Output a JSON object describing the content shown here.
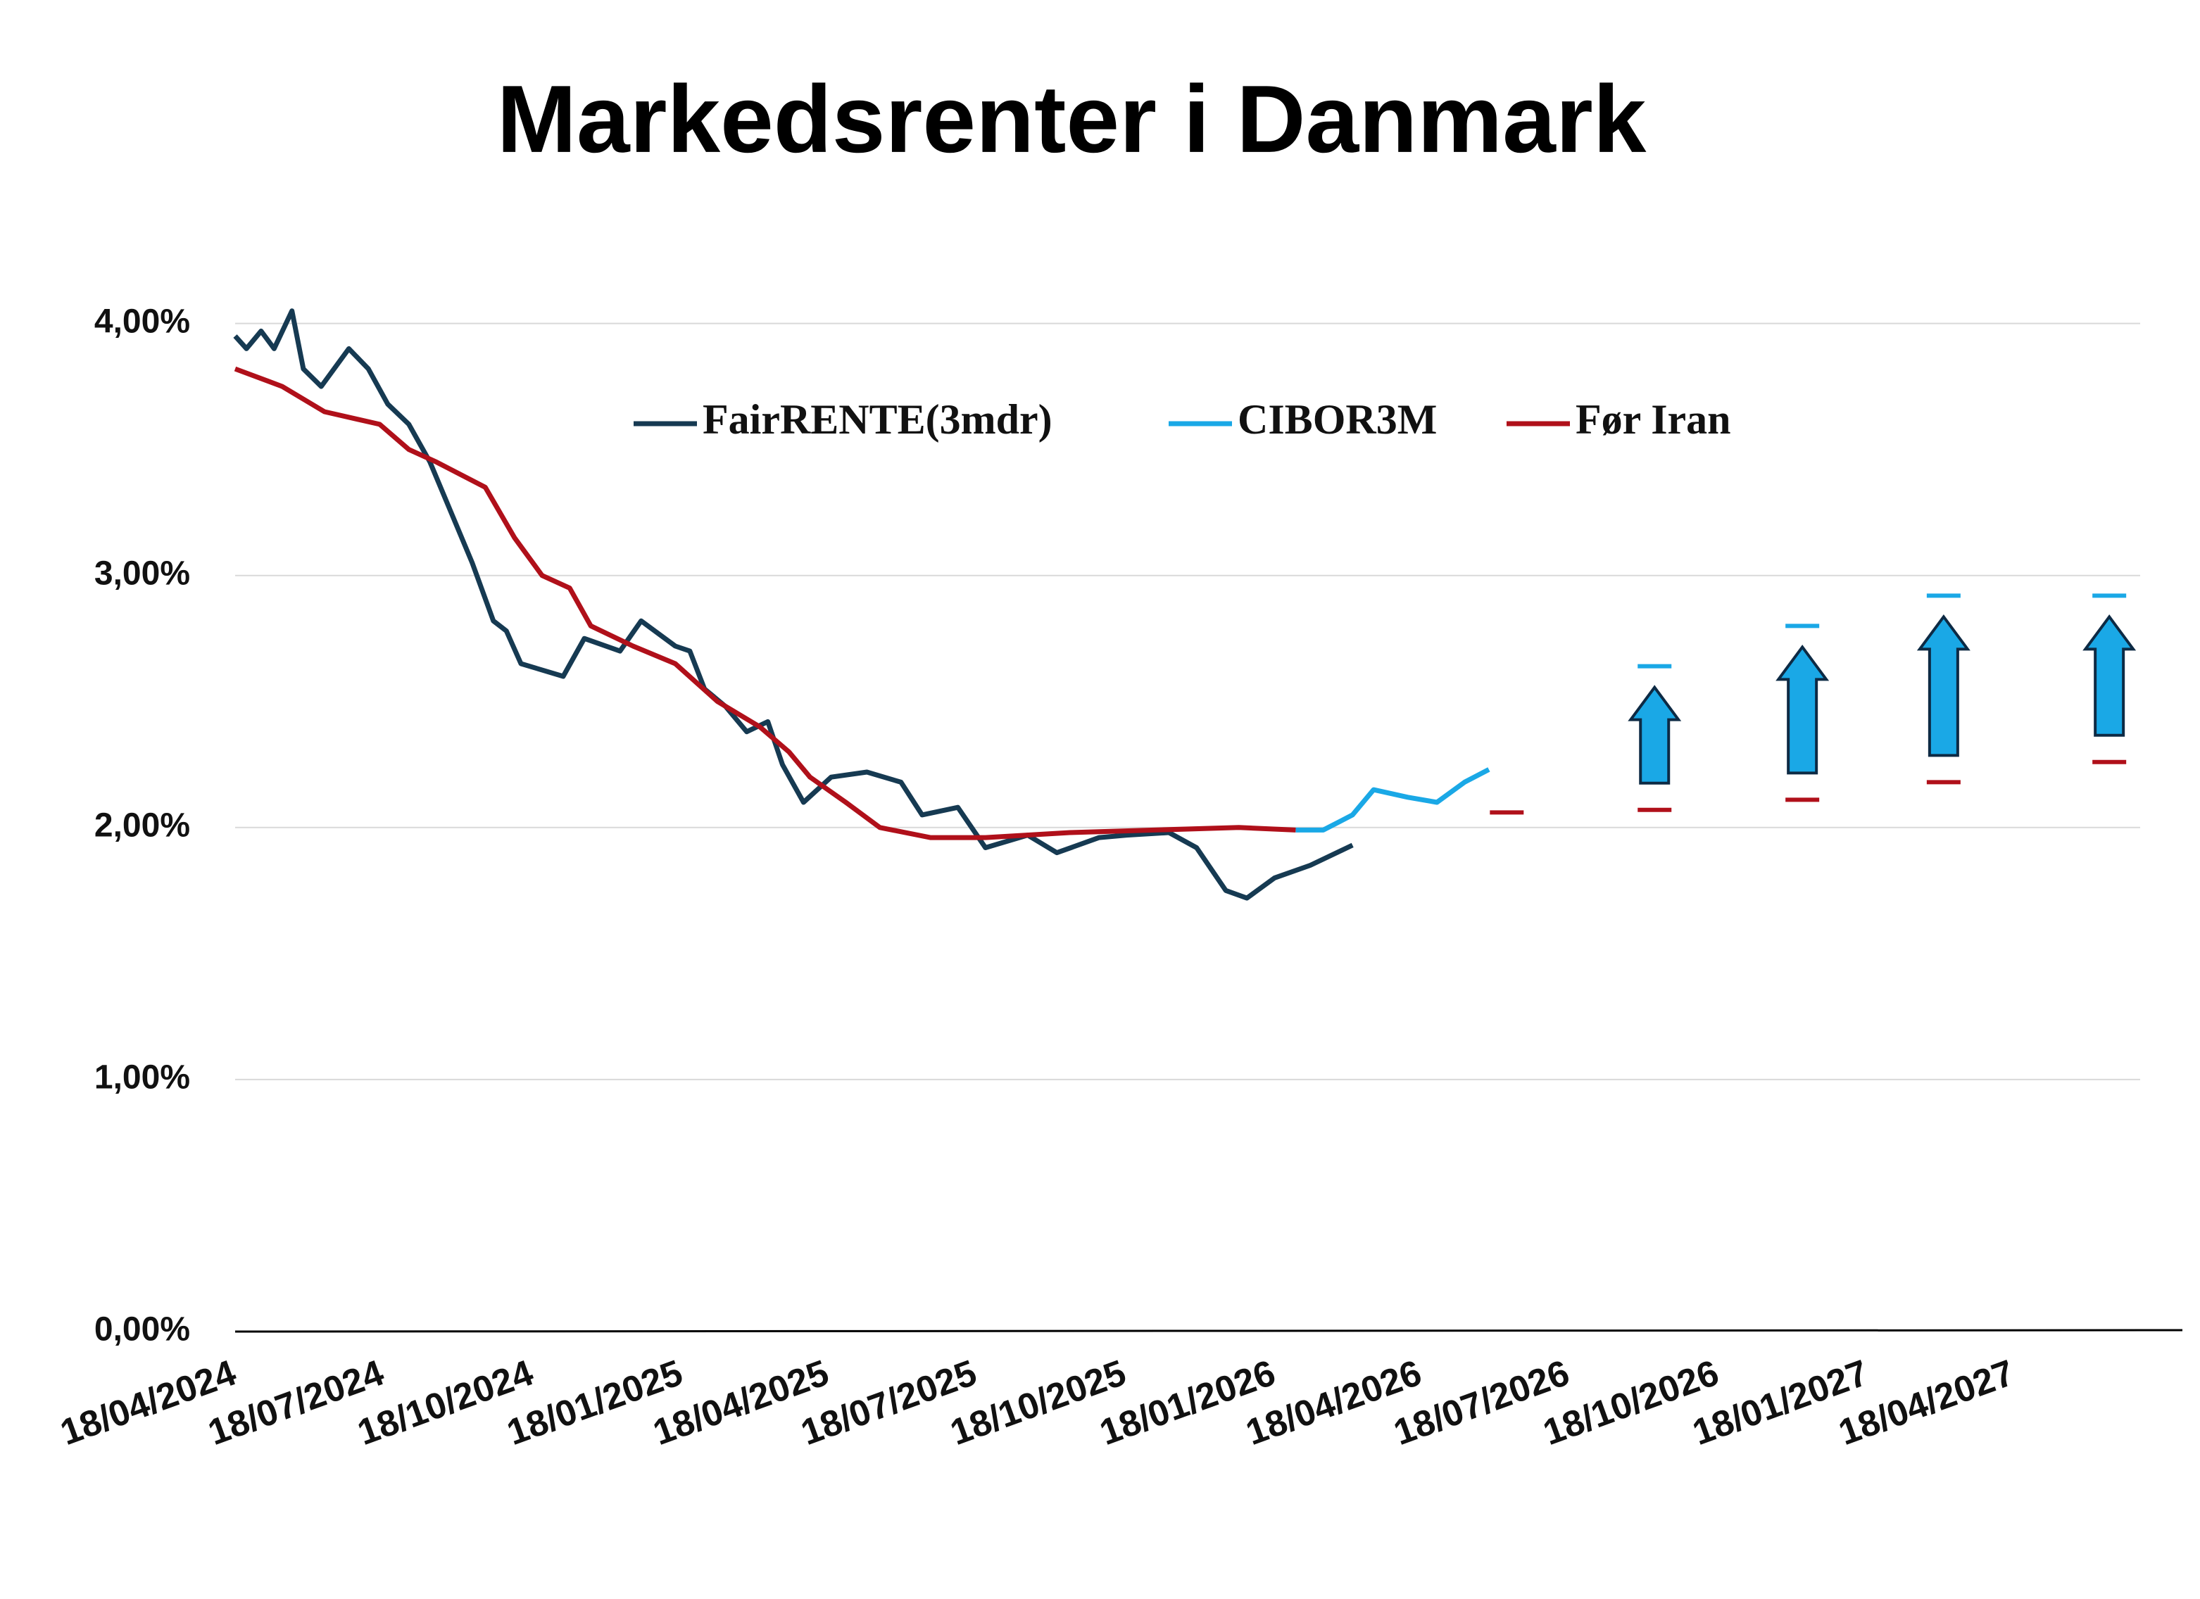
{
  "chart_data": {
    "type": "line",
    "title": "Markedsrenter i Danmark",
    "xlim": [
      "2024-04-18",
      "2027-07-05"
    ],
    "xticks": [
      {
        "value": "2024-04-18",
        "label": "18/04/2024"
      },
      {
        "value": "2024-07-18",
        "label": "18/07/2024"
      },
      {
        "value": "2024-10-18",
        "label": "18/10/2024"
      },
      {
        "value": "2025-01-18",
        "label": "18/01/2025"
      },
      {
        "value": "2025-04-18",
        "label": "18/04/2025"
      },
      {
        "value": "2025-07-18",
        "label": "18/07/2025"
      },
      {
        "value": "2025-10-18",
        "label": "18/10/2025"
      },
      {
        "value": "2026-01-18",
        "label": "18/01/2026"
      },
      {
        "value": "2026-04-18",
        "label": "18/04/2026"
      },
      {
        "value": "2026-07-18",
        "label": "18/07/2026"
      },
      {
        "value": "2026-10-18",
        "label": "18/10/2026"
      },
      {
        "value": "2027-01-18",
        "label": "18/01/2027"
      },
      {
        "value": "2027-04-18",
        "label": "18/04/2027"
      }
    ],
    "ylim": [
      0,
      4.2
    ],
    "yticks": [
      {
        "value": 0,
        "label": "0,00%"
      },
      {
        "value": 1,
        "label": "1,00%"
      },
      {
        "value": 2,
        "label": "2,00%"
      },
      {
        "value": 3,
        "label": "3,00%"
      },
      {
        "value": 4,
        "label": "4,00%"
      }
    ],
    "grid": true,
    "legend": "top",
    "series": [
      {
        "name": "FairRENTE(3mdr)",
        "color": "#163a52",
        "x": [
          "2024-04-18",
          "2024-04-25",
          "2024-05-04",
          "2024-05-12",
          "2024-05-23",
          "2024-05-30",
          "2024-06-10",
          "2024-06-27",
          "2024-07-09",
          "2024-07-21",
          "2024-08-03",
          "2024-08-16",
          "2024-08-29",
          "2024-09-11",
          "2024-09-24",
          "2024-10-02",
          "2024-10-11",
          "2024-11-06",
          "2024-11-19",
          "2024-12-11",
          "2024-12-24",
          "2025-01-14",
          "2025-01-23",
          "2025-02-01",
          "2025-02-14",
          "2025-02-27",
          "2025-03-12",
          "2025-03-21",
          "2025-04-03",
          "2025-04-20",
          "2025-05-12",
          "2025-06-02",
          "2025-06-15",
          "2025-07-07",
          "2025-07-24",
          "2025-08-19",
          "2025-09-06",
          "2025-10-02",
          "2025-10-19",
          "2025-11-14",
          "2025-12-01",
          "2025-12-19",
          "2026-01-01",
          "2026-01-18",
          "2026-02-09",
          "2026-03-07"
        ],
        "values": [
          3.95,
          3.9,
          3.97,
          3.9,
          4.05,
          3.82,
          3.75,
          3.9,
          3.82,
          3.68,
          3.6,
          3.45,
          3.25,
          3.05,
          2.82,
          2.78,
          2.65,
          2.6,
          2.75,
          2.7,
          2.82,
          2.72,
          2.7,
          2.55,
          2.48,
          2.38,
          2.42,
          2.25,
          2.1,
          2.2,
          2.22,
          2.18,
          2.05,
          2.08,
          1.92,
          1.97,
          1.9,
          1.96,
          1.97,
          1.98,
          1.92,
          1.75,
          1.72,
          1.8,
          1.85,
          1.93
        ]
      },
      {
        "name": "CIBOR3M",
        "color": "#1aa8e6",
        "x": [
          "2026-01-31",
          "2026-02-17",
          "2026-03-07",
          "2026-03-20",
          "2026-04-10",
          "2026-04-28",
          "2026-05-15",
          "2026-05-30",
          null,
          "2026-09-09",
          null,
          "2026-12-09",
          null,
          "2027-03-06",
          null,
          "2027-06-16"
        ],
        "values": [
          1.99,
          1.99,
          2.05,
          2.15,
          2.12,
          2.1,
          2.18,
          2.23,
          null,
          2.64,
          null,
          2.8,
          null,
          2.92,
          null,
          2.92
        ]
      },
      {
        "name": "Før Iran",
        "color": "#b0101a",
        "x": [
          "2024-04-18",
          "2024-05-17",
          "2024-06-12",
          "2024-07-16",
          "2024-08-03",
          "2024-08-20",
          "2024-09-19",
          "2024-10-07",
          "2024-10-24",
          "2024-11-10",
          "2024-11-23",
          "2024-12-19",
          "2025-01-14",
          "2025-02-09",
          "2025-03-07",
          "2025-03-25",
          "2025-04-07",
          "2025-04-29",
          "2025-05-20",
          "2025-06-20",
          "2025-07-24",
          "2025-09-14",
          "2025-11-05",
          "2025-12-27",
          "2026-01-31",
          null,
          "2026-06-10",
          null,
          "2026-09-09",
          null,
          "2026-12-09",
          null,
          "2027-03-06",
          null,
          "2027-06-16"
        ],
        "values": [
          3.82,
          3.75,
          3.65,
          3.6,
          3.5,
          3.45,
          3.35,
          3.15,
          3.0,
          2.95,
          2.8,
          2.72,
          2.65,
          2.5,
          2.4,
          2.3,
          2.2,
          2.1,
          2.0,
          1.96,
          1.96,
          1.98,
          1.99,
          2.0,
          1.99,
          null,
          2.06,
          null,
          2.07,
          null,
          2.11,
          null,
          2.18,
          null,
          2.26
        ]
      }
    ]
  }
}
